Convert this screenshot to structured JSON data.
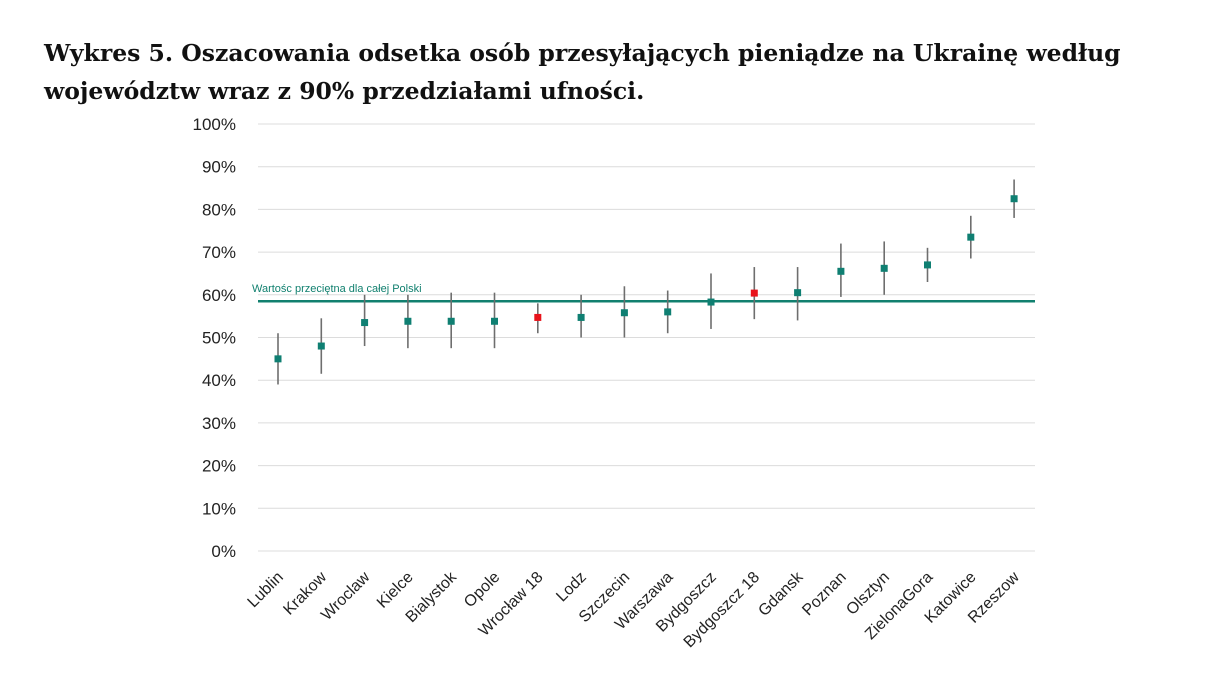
{
  "title": "Wykres 5. Oszacowania odsetka osób przesyłających pieniądze na Ukrainę według województw wraz z 90% przedziałami ufności.",
  "colors": {
    "point": "#0f7f72",
    "highlight": "#e8131b",
    "reference_line": "#11806f",
    "errorbar": "#6e6e6e",
    "grid": "#dcdcdc"
  },
  "chart_data": {
    "type": "scatter",
    "title": "Wykres 5. Oszacowania odsetka osób przesyłających pieniądze na Ukrainę według województw wraz z 90% przedziałami ufności.",
    "xlabel": "",
    "ylabel": "",
    "ylim": [
      0,
      100
    ],
    "y_ticks": [
      0,
      10,
      20,
      30,
      40,
      50,
      60,
      70,
      80,
      90,
      100
    ],
    "y_tick_labels": [
      "0%",
      "10%",
      "20%",
      "30%",
      "40%",
      "50%",
      "60%",
      "70%",
      "80%",
      "90%",
      "100%"
    ],
    "grid": true,
    "legend": "none",
    "categories": [
      "Lublin",
      "Krakow",
      "Wroclaw",
      "Kielce",
      "Bialystok",
      "Opole",
      "Wrocław 18",
      "Lodz",
      "Szczecin",
      "Warszawa",
      "Bydgoszcz",
      "Bydgoszcz 18",
      "Gdansk",
      "Poznan",
      "Olsztyn",
      "ZielonaGora",
      "Katowice",
      "Rzeszow"
    ],
    "values": [
      45,
      48,
      53.5,
      53.8,
      53.8,
      53.8,
      54.7,
      54.7,
      55.8,
      56,
      58.3,
      60.4,
      60.5,
      65.5,
      66.2,
      67,
      73.5,
      82.5
    ],
    "lower": [
      39,
      41.5,
      48,
      47.5,
      47.5,
      47.5,
      51,
      50,
      50,
      51,
      52,
      54.3,
      54,
      59.5,
      60,
      63,
      68.5,
      78
    ],
    "upper": [
      51,
      54.5,
      60,
      60,
      60.5,
      60.5,
      58,
      60,
      62,
      61,
      65,
      66.5,
      66.5,
      72,
      72.5,
      71,
      78.5,
      87
    ],
    "highlighted": [
      false,
      false,
      false,
      false,
      false,
      false,
      true,
      false,
      false,
      false,
      false,
      true,
      false,
      false,
      false,
      false,
      false,
      false
    ],
    "reference_line": {
      "value": 58.5,
      "label": "Wartośc przeciętna dla całej Polski"
    }
  }
}
